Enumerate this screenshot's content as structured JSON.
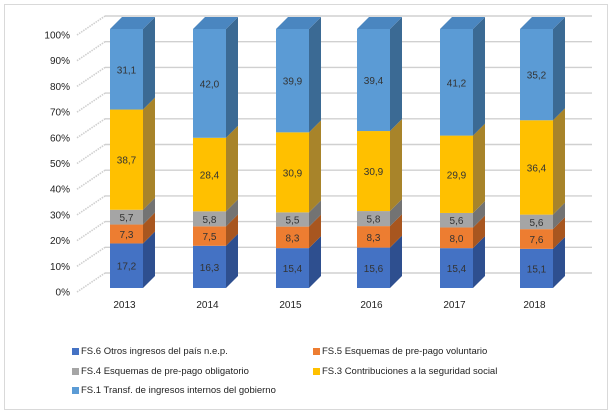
{
  "chart_data": {
    "type": "bar",
    "stacked": true,
    "percent_stacked": true,
    "three_d": true,
    "title": "",
    "xlabel": "",
    "ylabel": "",
    "ylim": [
      0,
      100
    ],
    "yticks": [
      "0%",
      "10%",
      "20%",
      "30%",
      "40%",
      "50%",
      "60%",
      "70%",
      "80%",
      "90%",
      "100%"
    ],
    "grid": true,
    "legend_position": "bottom",
    "categories": [
      "2013",
      "2014",
      "2015",
      "2016",
      "2017",
      "2018"
    ],
    "series": [
      {
        "name": "FS.6 Otros ingresos del país n.e.p.",
        "color": "#4472c4",
        "side": "#2e4f8f",
        "values": [
          "17,2",
          "16,3",
          "15,4",
          "15,6",
          "15,4",
          "15,1"
        ]
      },
      {
        "name": "FS.5 Esquemas de pre-pago voluntario",
        "color": "#ed7d31",
        "side": "#a8561f",
        "values": [
          "7,3",
          "7,5",
          "8,3",
          "8,3",
          "8,0",
          "7,6"
        ]
      },
      {
        "name": "FS.4 Esquemas de  pre-pago obligatorio",
        "color": "#a5a5a5",
        "side": "#737373",
        "values": [
          "5,7",
          "5,8",
          "5,5",
          "5,8",
          "5,6",
          "5,6"
        ]
      },
      {
        "name": "FS.3 Contribuciones a la seguridad social",
        "color": "#ffc000",
        "side": "#a8842a",
        "values": [
          "38,7",
          "28,4",
          "30,9",
          "30,9",
          "29,9",
          "36,4"
        ]
      },
      {
        "name": "FS.1 Transf. de ingresos internos del gobierno",
        "color": "#5b9bd5",
        "side": "#3b6a94",
        "values": [
          "31,1",
          "42,0",
          "39,9",
          "39,4",
          "41,2",
          "35,2"
        ]
      }
    ]
  }
}
